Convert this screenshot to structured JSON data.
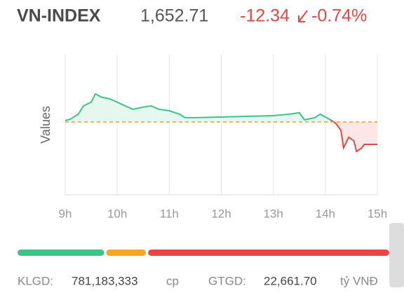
{
  "header": {
    "name": "VN-INDEX",
    "price": "1,652.71",
    "change": "-12.34",
    "percent": "-0.74%"
  },
  "chart_data": {
    "type": "line",
    "y_label": "Values",
    "xlim": [
      9,
      15
    ],
    "ylim": [
      1625,
      1702
    ],
    "xticks": [
      {
        "value": 9,
        "label": "9h"
      },
      {
        "value": 10,
        "label": "10h"
      },
      {
        "value": 11,
        "label": "11h"
      },
      {
        "value": 12,
        "label": "12h"
      },
      {
        "value": 13,
        "label": "13h"
      },
      {
        "value": 14,
        "label": "14h"
      },
      {
        "value": 15,
        "label": "15h"
      }
    ],
    "grid": true,
    "baseline": 1665.05,
    "baseline_color": "#f0a020",
    "series": [
      {
        "color": "#3cc487",
        "fill": "#e6f7ef",
        "x": [
          9.0,
          9.1,
          9.25,
          9.35,
          9.5,
          9.58,
          9.7,
          9.85,
          10.0,
          10.15,
          10.3,
          10.5,
          10.65,
          10.8,
          11.0,
          11.2,
          11.3,
          11.5,
          13.0,
          13.3,
          13.5,
          13.6,
          13.8,
          13.9,
          14.1
        ],
        "values": [
          1665.8,
          1666.6,
          1669.3,
          1673.9,
          1675.9,
          1680.5,
          1678.6,
          1677.8,
          1675.9,
          1673.9,
          1672.0,
          1673.2,
          1673.9,
          1672.0,
          1671.2,
          1669.3,
          1667.4,
          1667.4,
          1668.5,
          1669.3,
          1670.1,
          1666.2,
          1667.4,
          1669.3,
          1666.2
        ]
      },
      {
        "color": "#e84545",
        "fill": "#fde6e6",
        "x": [
          14.1,
          14.2,
          14.3,
          14.35,
          14.45,
          14.55,
          14.6,
          14.7,
          14.75,
          15.0
        ],
        "values": [
          1666.2,
          1664.3,
          1660.4,
          1650.8,
          1656.6,
          1654.6,
          1648.8,
          1650.8,
          1652.7,
          1652.71
        ]
      }
    ]
  },
  "breadth": {
    "values": [
      125,
      59,
      343
    ],
    "colors": [
      "#3cc487",
      "#f5a623",
      "#e84545"
    ]
  },
  "footer": {
    "volume_label": "KLGD:",
    "volume": "781,183,333",
    "volume_unit": "cp",
    "value_label": "GTGD:",
    "value": "22,661.70",
    "value_unit": "tỷ VNĐ"
  }
}
